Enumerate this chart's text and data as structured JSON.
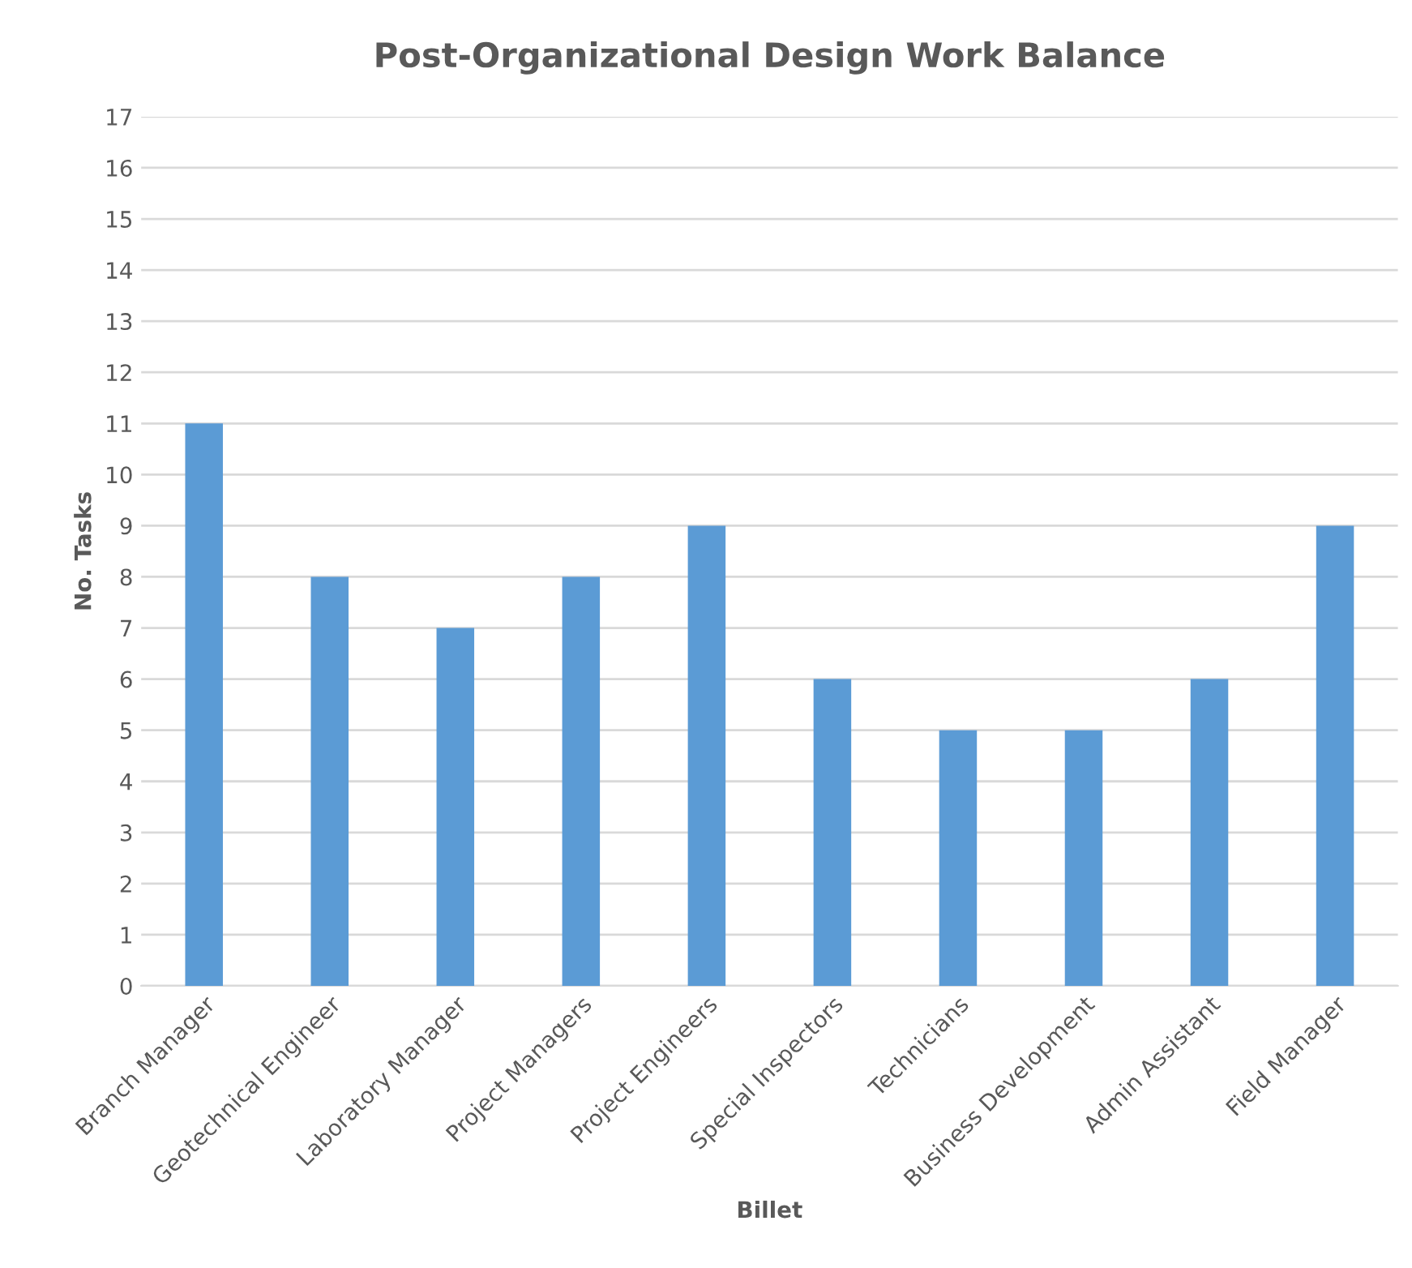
{
  "chart_data": {
    "type": "bar",
    "title": "Post-Organizational Design Work Balance",
    "xlabel": "Billet",
    "ylabel": "No. Tasks",
    "categories": [
      "Branch Manager",
      "Geotechnical Engineer",
      "Laboratory Manager",
      "Project Managers",
      "Project Engineers",
      "Special Inspectors",
      "Technicians",
      "Business Development",
      "Admin Assistant",
      "Field Manager"
    ],
    "values": [
      11,
      8,
      7,
      8,
      9,
      6,
      5,
      5,
      6,
      9
    ],
    "color": "#5b9bd5",
    "ylim": [
      0,
      17
    ],
    "yticks": [
      0,
      1,
      2,
      3,
      4,
      5,
      6,
      7,
      8,
      9,
      10,
      11,
      12,
      13,
      14,
      15,
      16,
      17
    ],
    "grid": "y"
  }
}
